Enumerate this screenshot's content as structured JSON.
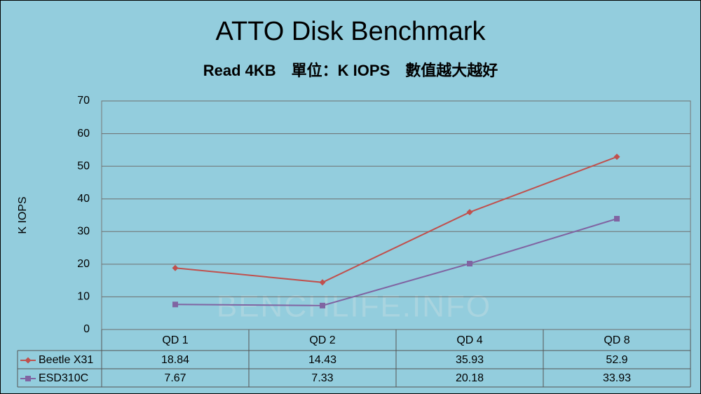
{
  "chart_data": {
    "type": "line",
    "title": "ATTO Disk Benchmark",
    "subtitle": "Read 4KB　單位：K IOPS　數值越大越好",
    "y_label": "K IOPS",
    "watermark": "BENCHLIFE.INFO",
    "categories": [
      "QD 1",
      "QD 2",
      "QD 4",
      "QD 8"
    ],
    "series": [
      {
        "name": "Beetle X31",
        "color": "#c0504d",
        "marker": "diamond",
        "values": [
          18.84,
          14.43,
          35.93,
          52.9
        ]
      },
      {
        "name": "ESD310C",
        "color": "#8064a2",
        "marker": "square",
        "values": [
          7.67,
          7.33,
          20.18,
          33.93
        ]
      }
    ],
    "ylim": [
      0,
      70
    ],
    "yticks": [
      0,
      10,
      20,
      30,
      40,
      50,
      60,
      70
    ],
    "grid": true,
    "data_table": true
  }
}
